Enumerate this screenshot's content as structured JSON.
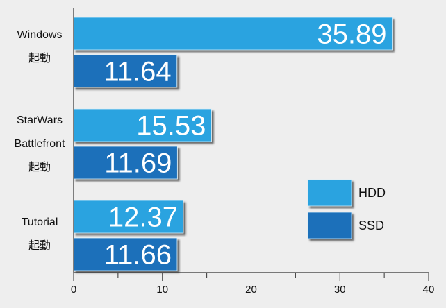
{
  "chart_data": {
    "type": "bar",
    "orientation": "horizontal",
    "title": "",
    "xlabel": "",
    "ylabel": "",
    "categories": [
      [
        "Windows",
        "起動"
      ],
      [
        "StarWars",
        "Battlefront",
        "起動"
      ],
      [
        "Tutorial",
        "起動"
      ]
    ],
    "series": [
      {
        "name": "HDD",
        "color": "#2ba3e0",
        "values": [
          35.89,
          15.53,
          12.37
        ],
        "labels": [
          "35.89",
          "15.53",
          "12.37"
        ]
      },
      {
        "name": "SSD",
        "color": "#1c6fba",
        "values": [
          11.64,
          11.69,
          11.66
        ],
        "labels": [
          "11.64",
          "11.69",
          "11.66"
        ]
      }
    ],
    "xlim": [
      0,
      40
    ],
    "ticks": [
      "0",
      "10",
      "20",
      "30",
      "40"
    ],
    "grid": false,
    "legend_position": "right"
  }
}
